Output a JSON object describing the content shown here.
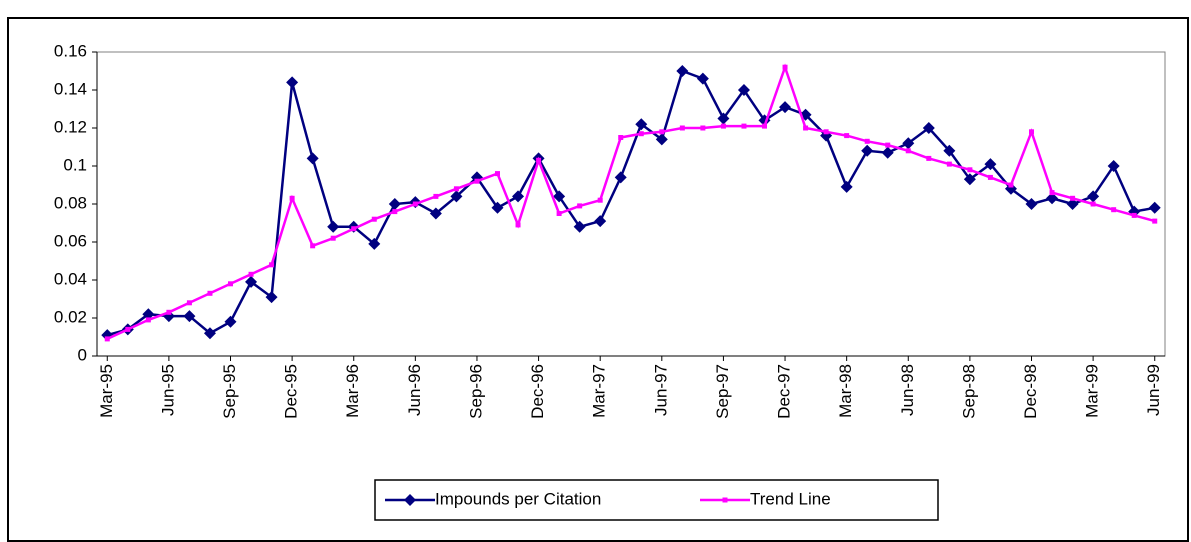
{
  "chart_data": {
    "type": "line",
    "categories": [
      "Mar-95",
      null,
      null,
      "Jun-95",
      null,
      null,
      "Sep-95",
      null,
      null,
      "Dec-95",
      null,
      null,
      "Mar-96",
      null,
      null,
      "Jun-96",
      null,
      null,
      "Sep-96",
      null,
      null,
      "Dec-96",
      null,
      null,
      "Mar-97",
      null,
      null,
      "Jun-97",
      null,
      null,
      "Sep-97",
      null,
      null,
      "Dec-97",
      null,
      null,
      "Mar-98",
      null,
      null,
      "Jun-98",
      null,
      null,
      "Sep-98",
      null,
      null,
      "Dec-98",
      null,
      null,
      "Mar-99",
      null,
      null,
      "Jun-99"
    ],
    "series": [
      {
        "name": "Impounds per Citation",
        "color": "#000080",
        "marker": "diamond",
        "values": [
          0.011,
          0.014,
          0.022,
          0.021,
          0.021,
          0.012,
          0.018,
          0.039,
          0.031,
          0.144,
          0.104,
          0.068,
          0.068,
          0.059,
          0.08,
          0.081,
          0.075,
          0.084,
          0.094,
          0.078,
          0.084,
          0.104,
          0.084,
          0.068,
          0.071,
          0.094,
          0.122,
          0.114,
          0.15,
          0.146,
          0.125,
          0.14,
          0.124,
          0.131,
          0.127,
          0.116,
          0.089,
          0.108,
          0.107,
          0.112,
          0.12,
          0.108,
          0.093,
          0.101,
          0.088,
          0.08,
          0.083,
          0.08,
          0.084,
          0.1,
          0.076,
          0.078
        ]
      },
      {
        "name": "Trend Line",
        "color": "#ff00ff",
        "marker": "square",
        "values": [
          0.009,
          0.014,
          0.019,
          0.023,
          0.028,
          0.033,
          0.038,
          0.043,
          0.048,
          0.083,
          0.058,
          0.062,
          0.067,
          0.072,
          0.076,
          0.08,
          0.084,
          0.088,
          0.092,
          0.096,
          0.069,
          0.103,
          0.075,
          0.079,
          0.082,
          0.115,
          0.117,
          0.118,
          0.12,
          0.12,
          0.121,
          0.121,
          0.121,
          0.152,
          0.12,
          0.118,
          0.116,
          0.113,
          0.111,
          0.108,
          0.104,
          0.101,
          0.098,
          0.094,
          0.09,
          0.118,
          0.086,
          0.083,
          0.08,
          0.077,
          0.074,
          0.071
        ]
      }
    ],
    "ylim": [
      0,
      0.16
    ],
    "yticks": [
      0,
      0.02,
      0.04,
      0.06,
      0.08,
      0.1,
      0.12,
      0.14,
      0.16
    ],
    "grid": false,
    "legend": "bottom"
  }
}
